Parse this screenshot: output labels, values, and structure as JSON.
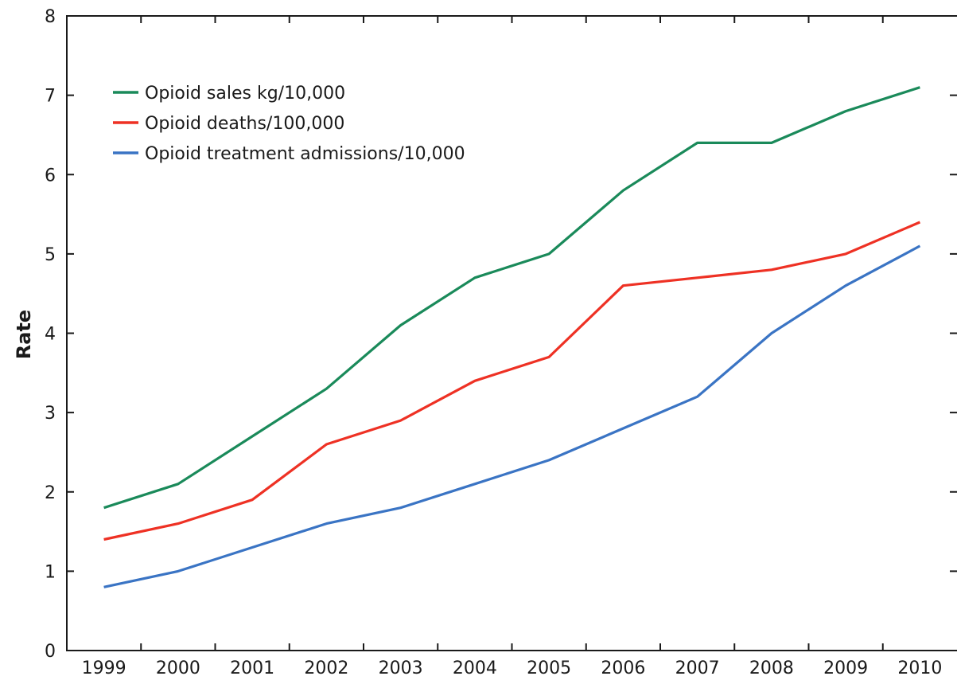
{
  "chart_data": {
    "type": "line",
    "title": "",
    "xlabel": "",
    "ylabel": "Rate",
    "ylim": [
      0,
      8
    ],
    "yticks": [
      0,
      1,
      2,
      3,
      4,
      5,
      6,
      7,
      8
    ],
    "x": [
      "1999",
      "2000",
      "2001",
      "2002",
      "2003",
      "2004",
      "2005",
      "2006",
      "2007",
      "2008",
      "2009",
      "2010"
    ],
    "grid": false,
    "legend_position": "top-left",
    "series": [
      {
        "name": "Opioid sales kg/10,000",
        "color": "#1a8a5a",
        "values": [
          1.8,
          2.1,
          2.7,
          3.3,
          4.1,
          4.7,
          5.0,
          5.8,
          6.4,
          6.4,
          6.8,
          7.1
        ]
      },
      {
        "name": "Opioid deaths/100,000",
        "color": "#ee3124",
        "values": [
          1.4,
          1.6,
          1.9,
          2.6,
          2.9,
          3.4,
          3.7,
          4.6,
          4.7,
          4.8,
          5.0,
          5.4
        ]
      },
      {
        "name": "Opioid treatment admissions/10,000",
        "color": "#3a74c4",
        "values": [
          0.8,
          1.0,
          1.3,
          1.6,
          1.8,
          2.1,
          2.4,
          2.8,
          3.2,
          4.0,
          4.6,
          5.1
        ]
      }
    ]
  }
}
